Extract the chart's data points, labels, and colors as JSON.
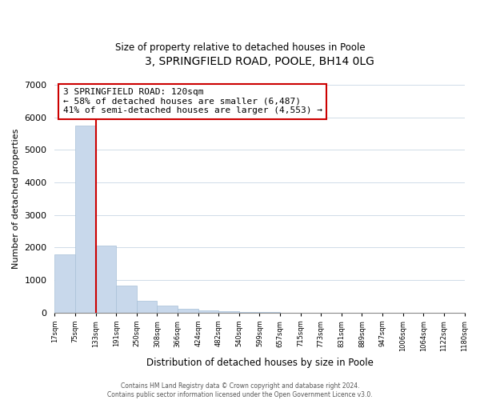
{
  "title": "3, SPRINGFIELD ROAD, POOLE, BH14 0LG",
  "subtitle": "Size of property relative to detached houses in Poole",
  "xlabel": "Distribution of detached houses by size in Poole",
  "ylabel": "Number of detached properties",
  "bar_values": [
    1780,
    5750,
    2060,
    830,
    370,
    220,
    110,
    60,
    30,
    10,
    5,
    0,
    0,
    0,
    0,
    0,
    0,
    0,
    0,
    0
  ],
  "bar_labels": [
    "17sqm",
    "75sqm",
    "133sqm",
    "191sqm",
    "250sqm",
    "308sqm",
    "366sqm",
    "424sqm",
    "482sqm",
    "540sqm",
    "599sqm",
    "657sqm",
    "715sqm",
    "773sqm",
    "831sqm",
    "889sqm",
    "947sqm",
    "1006sqm",
    "1064sqm",
    "1122sqm",
    "1180sqm"
  ],
  "bar_color": "#c8d8eb",
  "bar_edge_color": "#a8c0d8",
  "property_line_x": 2.0,
  "property_line_color": "#cc0000",
  "ylim": [
    0,
    7000
  ],
  "yticks": [
    0,
    1000,
    2000,
    3000,
    4000,
    5000,
    6000,
    7000
  ],
  "annotation_box_text": "3 SPRINGFIELD ROAD: 120sqm\n← 58% of detached houses are smaller (6,487)\n41% of semi-detached houses are larger (4,553) →",
  "footnote": "Contains HM Land Registry data © Crown copyright and database right 2024.\nContains public sector information licensed under the Open Government Licence v3.0.",
  "background_color": "#ffffff",
  "grid_color": "#d0dce8"
}
